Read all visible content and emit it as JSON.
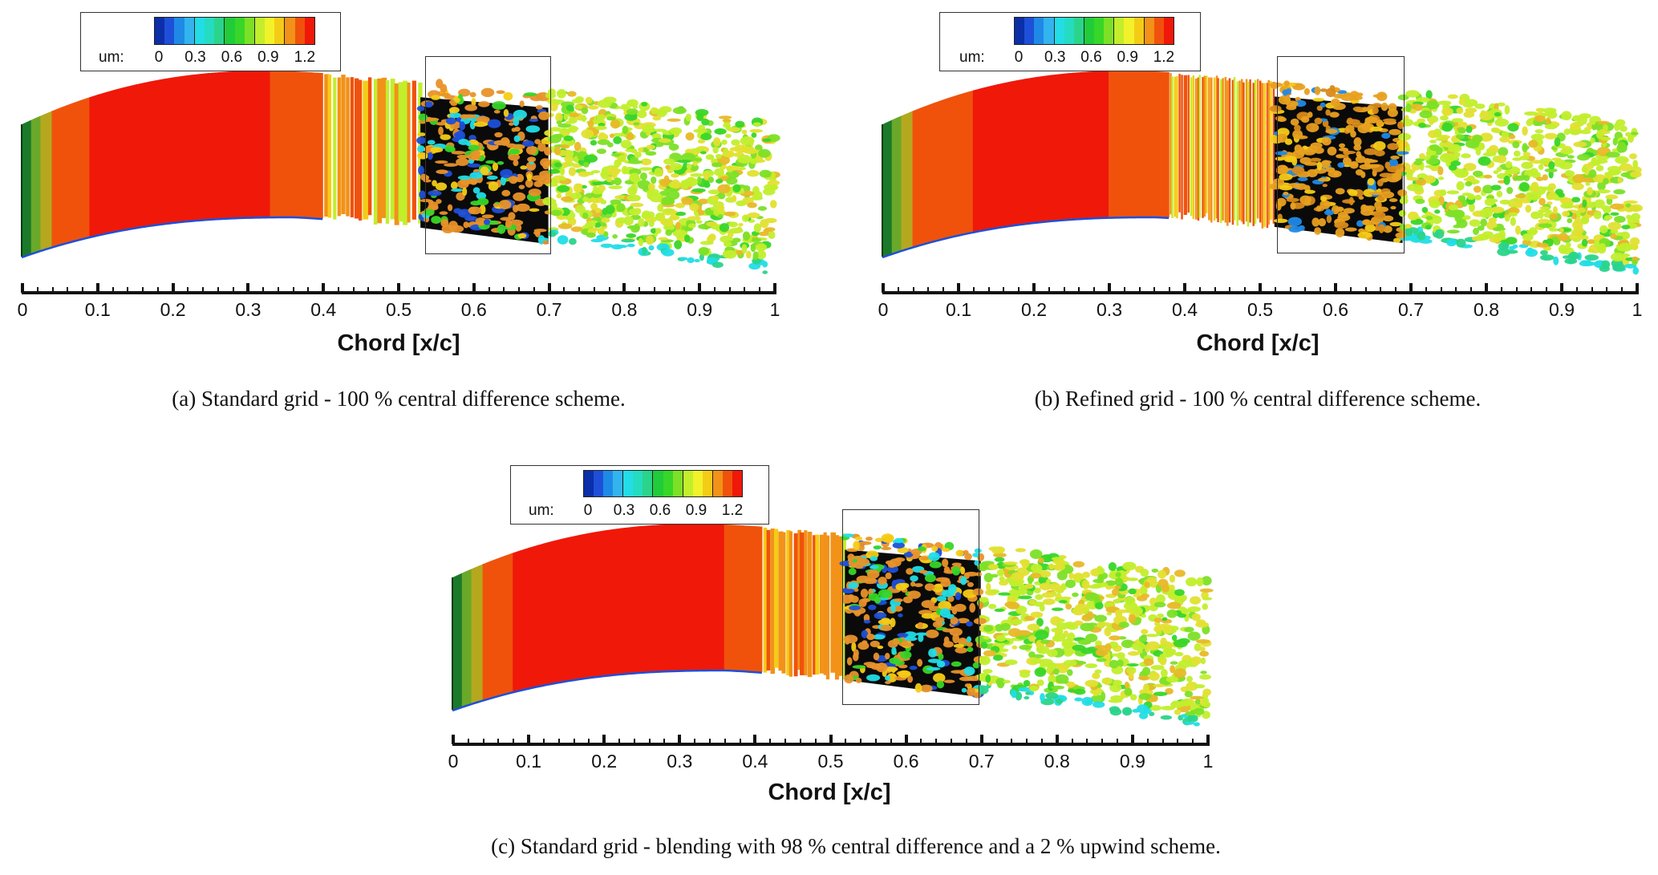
{
  "figure": {
    "colormap": {
      "variable_label": "um:",
      "tick_labels": [
        "0",
        "0.3",
        "0.6",
        "0.9",
        "1.2"
      ],
      "colors": [
        "#0b2fa8",
        "#1e4fd8",
        "#1f8ae6",
        "#33b4ee",
        "#22dde6",
        "#25dcc0",
        "#2ad48a",
        "#20cc3a",
        "#38d628",
        "#7ce026",
        "#c2ee2c",
        "#f2f22a",
        "#f4cc16",
        "#f29218",
        "#f0520c",
        "#f01808"
      ]
    },
    "xlabel": "Chord [x/c]",
    "x_ticks": [
      "0",
      "0.1",
      "0.2",
      "0.3",
      "0.4",
      "0.5",
      "0.6",
      "0.7",
      "0.8",
      "0.9",
      "1"
    ],
    "zoom_box_range": "0.53–0.70 x/c"
  },
  "chart_data": [
    {
      "type": "heatmap",
      "panel": "a",
      "title": "(a) Standard grid - 100 % central difference scheme.",
      "xlabel": "Chord [x/c]",
      "xlim": [
        0,
        1
      ],
      "x_ticks": [
        0,
        0.1,
        0.2,
        0.3,
        0.4,
        0.5,
        0.6,
        0.7,
        0.8,
        0.9,
        1
      ],
      "colorbar": {
        "variable": "um",
        "range": [
          0,
          1.3
        ],
        "ticks": [
          0,
          0.3,
          0.6,
          0.9,
          1.2
        ]
      },
      "highlight_box_x": [
        0.53,
        0.7
      ],
      "regions": [
        {
          "x": [
            0.0,
            0.04
          ],
          "description": "leading edge, green to yellow",
          "um": 0.8
        },
        {
          "x": [
            0.04,
            0.09
          ],
          "description": "orange",
          "um": 1.15
        },
        {
          "x": [
            0.09,
            0.33
          ],
          "description": "laminar, red-orange",
          "um": 1.25
        },
        {
          "x": [
            0.33,
            0.4
          ],
          "description": "orange streaks",
          "um": 1.15
        },
        {
          "x": [
            0.4,
            0.53
          ],
          "description": "spanwise rolls (transition onset)",
          "um": 1.1
        },
        {
          "x": [
            0.53,
            0.7
          ],
          "description": "separation / breakdown, black reverse-flow",
          "um": 0.9
        },
        {
          "x": [
            0.7,
            1.0
          ],
          "description": "turbulent, yellow-green",
          "um": 0.85
        }
      ]
    },
    {
      "type": "heatmap",
      "panel": "b",
      "title": "(b) Refined grid - 100 % central difference scheme.",
      "xlabel": "Chord [x/c]",
      "xlim": [
        0,
        1
      ],
      "x_ticks": [
        0,
        0.1,
        0.2,
        0.3,
        0.4,
        0.5,
        0.6,
        0.7,
        0.8,
        0.9,
        1
      ],
      "colorbar": {
        "variable": "um",
        "range": [
          0,
          1.3
        ],
        "ticks": [
          0,
          0.3,
          0.6,
          0.9,
          1.2
        ]
      },
      "highlight_box_x": [
        0.52,
        0.69
      ],
      "regions": [
        {
          "x": [
            0.0,
            0.04
          ],
          "description": "leading edge, green to yellow",
          "um": 0.8
        },
        {
          "x": [
            0.04,
            0.12
          ],
          "description": "orange",
          "um": 1.15
        },
        {
          "x": [
            0.12,
            0.3
          ],
          "description": "laminar, red-orange",
          "um": 1.25
        },
        {
          "x": [
            0.3,
            0.38
          ],
          "description": "orange",
          "um": 1.15
        },
        {
          "x": [
            0.38,
            0.52
          ],
          "description": "fine spanwise streaks",
          "um": 1.05
        },
        {
          "x": [
            0.52,
            0.69
          ],
          "description": "separation bubble, black bands with orange rolls",
          "um": 0.9
        },
        {
          "x": [
            0.69,
            1.0
          ],
          "description": "turbulent, green-yellow",
          "um": 0.8
        }
      ]
    },
    {
      "type": "heatmap",
      "panel": "c",
      "title": "(c) Standard grid - blending with 98 % central difference and a 2 % upwind scheme.",
      "xlabel": "Chord [x/c]",
      "xlim": [
        0,
        1
      ],
      "x_ticks": [
        0,
        0.1,
        0.2,
        0.3,
        0.4,
        0.5,
        0.6,
        0.7,
        0.8,
        0.9,
        1
      ],
      "colorbar": {
        "variable": "um",
        "range": [
          0,
          1.3
        ],
        "ticks": [
          0,
          0.3,
          0.6,
          0.9,
          1.2
        ]
      },
      "highlight_box_x": [
        0.52,
        0.7
      ],
      "regions": [
        {
          "x": [
            0.0,
            0.04
          ],
          "description": "leading edge, green to yellow",
          "um": 0.8
        },
        {
          "x": [
            0.04,
            0.08
          ],
          "description": "orange",
          "um": 1.15
        },
        {
          "x": [
            0.08,
            0.36
          ],
          "description": "laminar, red-orange",
          "um": 1.25
        },
        {
          "x": [
            0.36,
            0.41
          ],
          "description": "orange",
          "um": 1.15
        },
        {
          "x": [
            0.41,
            0.52
          ],
          "description": "spanwise rolls",
          "um": 1.1
        },
        {
          "x": [
            0.52,
            0.7
          ],
          "description": "breakdown, black with blue/green structures",
          "um": 0.9
        },
        {
          "x": [
            0.7,
            1.0
          ],
          "description": "turbulent, yellow-green",
          "um": 0.85
        }
      ]
    }
  ]
}
